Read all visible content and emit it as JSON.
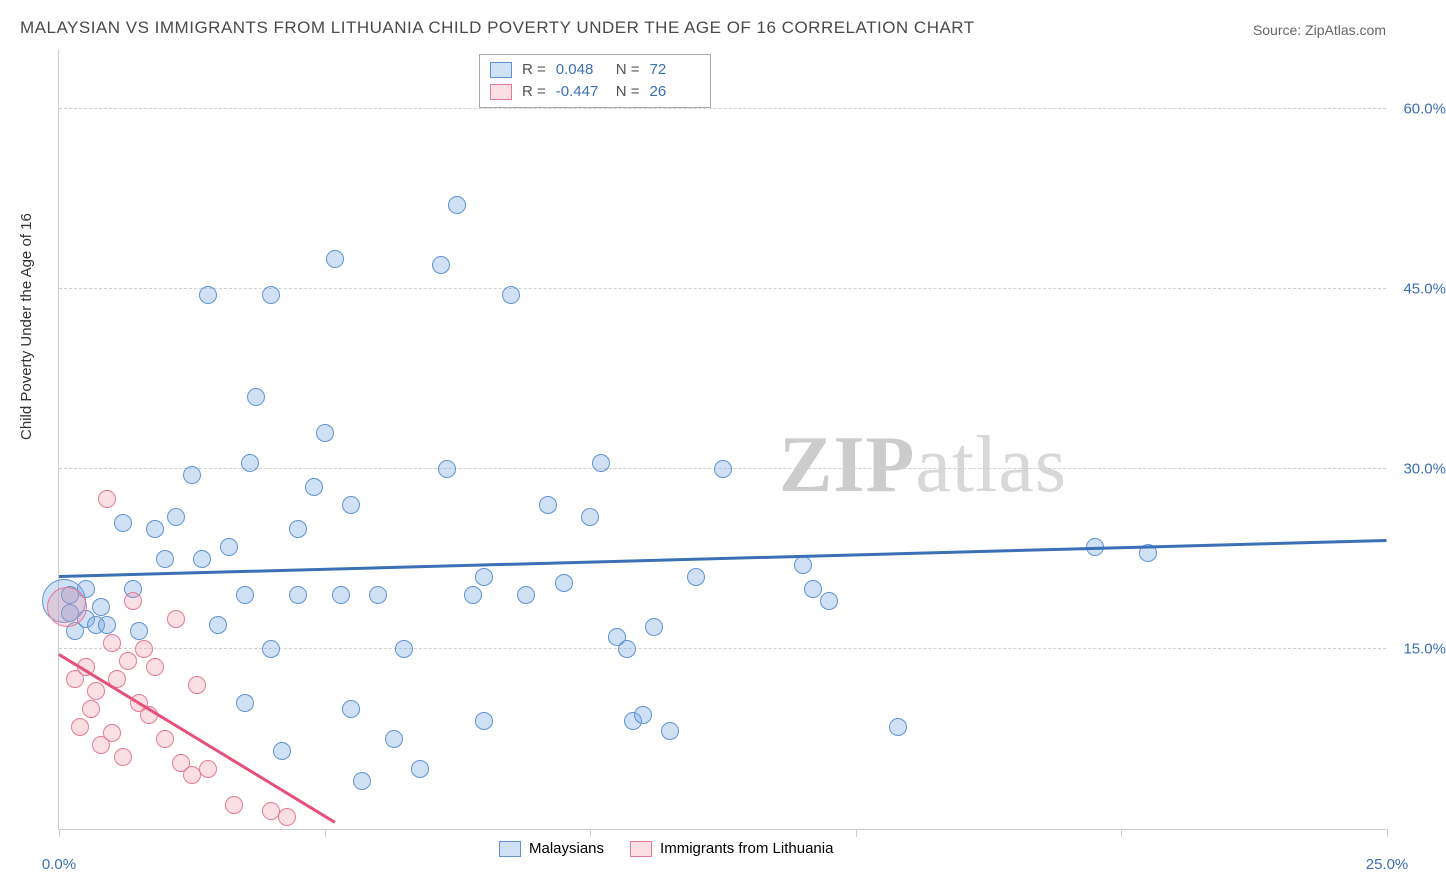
{
  "title": "MALAYSIAN VS IMMIGRANTS FROM LITHUANIA CHILD POVERTY UNDER THE AGE OF 16 CORRELATION CHART",
  "source": "Source: ZipAtlas.com",
  "y_axis_label": "Child Poverty Under the Age of 16",
  "watermark": {
    "prefix": "ZIP",
    "suffix": "atlas"
  },
  "chart": {
    "type": "scatter",
    "xlim": [
      0,
      25
    ],
    "ylim": [
      0,
      65
    ],
    "x_ticks": [
      0,
      5,
      10,
      15,
      20,
      25
    ],
    "x_tick_labels": [
      "0.0%",
      "",
      "",
      "",
      "",
      "25.0%"
    ],
    "y_ticks": [
      15,
      30,
      45,
      60
    ],
    "y_tick_labels": [
      "15.0%",
      "30.0%",
      "45.0%",
      "60.0%"
    ],
    "grid_color": "#d0d0d0",
    "background_color": "#ffffff",
    "axis_color": "#cccccc",
    "tick_label_color": "#3b6fb6",
    "marker_radius": 9,
    "series": [
      {
        "name": "Malaysians",
        "color_fill": "rgba(120,170,225,0.35)",
        "color_stroke": "#5e94d4",
        "trend_color": "#3b6fb6",
        "R": "0.048",
        "N": "72",
        "trend": {
          "x1": 0,
          "y1": 21.0,
          "x2": 25,
          "y2": 24.0
        },
        "points": [
          [
            0.2,
            19.5
          ],
          [
            0.2,
            18.0
          ],
          [
            0.3,
            16.5
          ],
          [
            0.5,
            17.5
          ],
          [
            0.5,
            20.0
          ],
          [
            0.7,
            17.0
          ],
          [
            0.8,
            18.5
          ],
          [
            0.9,
            17.0
          ],
          [
            1.2,
            25.5
          ],
          [
            1.4,
            20.0
          ],
          [
            1.5,
            16.5
          ],
          [
            1.8,
            25.0
          ],
          [
            2.0,
            22.5
          ],
          [
            2.2,
            26.0
          ],
          [
            2.5,
            29.5
          ],
          [
            2.7,
            22.5
          ],
          [
            2.8,
            44.5
          ],
          [
            3.0,
            17.0
          ],
          [
            3.2,
            23.5
          ],
          [
            3.5,
            19.5
          ],
          [
            3.5,
            10.5
          ],
          [
            3.6,
            30.5
          ],
          [
            3.7,
            36.0
          ],
          [
            4.0,
            15.0
          ],
          [
            4.0,
            44.5
          ],
          [
            4.2,
            6.5
          ],
          [
            4.5,
            25.0
          ],
          [
            4.5,
            19.5
          ],
          [
            4.8,
            28.5
          ],
          [
            5.0,
            33.0
          ],
          [
            5.2,
            47.5
          ],
          [
            5.3,
            19.5
          ],
          [
            5.5,
            27.0
          ],
          [
            5.5,
            10.0
          ],
          [
            5.7,
            4.0
          ],
          [
            6.0,
            19.5
          ],
          [
            6.3,
            7.5
          ],
          [
            6.5,
            15.0
          ],
          [
            6.8,
            5.0
          ],
          [
            7.2,
            47.0
          ],
          [
            7.3,
            30.0
          ],
          [
            7.5,
            52.0
          ],
          [
            7.8,
            19.5
          ],
          [
            8.0,
            21.0
          ],
          [
            8.0,
            9.0
          ],
          [
            8.5,
            44.5
          ],
          [
            8.8,
            19.5
          ],
          [
            9.2,
            27.0
          ],
          [
            9.5,
            20.5
          ],
          [
            10.0,
            26.0
          ],
          [
            10.2,
            30.5
          ],
          [
            10.5,
            16.0
          ],
          [
            10.7,
            15.0
          ],
          [
            10.8,
            9.0
          ],
          [
            11.0,
            9.5
          ],
          [
            11.2,
            16.8
          ],
          [
            11.5,
            8.2
          ],
          [
            12.0,
            21.0
          ],
          [
            12.5,
            30.0
          ],
          [
            14.0,
            22.0
          ],
          [
            14.2,
            20.0
          ],
          [
            14.5,
            19.0
          ],
          [
            15.8,
            8.5
          ],
          [
            19.5,
            23.5
          ],
          [
            20.5,
            23.0
          ]
        ],
        "big_points": [
          [
            0.1,
            19.0,
            22
          ]
        ]
      },
      {
        "name": "Immigrants from Lithuania",
        "color_fill": "rgba(240,150,170,0.30)",
        "color_stroke": "#e67a94",
        "trend_color": "#e6507a",
        "R": "-0.447",
        "N": "26",
        "trend": {
          "x1": 0,
          "y1": 14.5,
          "x2": 5.2,
          "y2": 0.5
        },
        "points": [
          [
            0.3,
            12.5
          ],
          [
            0.4,
            8.5
          ],
          [
            0.5,
            13.5
          ],
          [
            0.6,
            10.0
          ],
          [
            0.7,
            11.5
          ],
          [
            0.8,
            7.0
          ],
          [
            0.9,
            27.5
          ],
          [
            1.0,
            15.5
          ],
          [
            1.0,
            8.0
          ],
          [
            1.1,
            12.5
          ],
          [
            1.2,
            6.0
          ],
          [
            1.3,
            14.0
          ],
          [
            1.4,
            19.0
          ],
          [
            1.5,
            10.5
          ],
          [
            1.6,
            15.0
          ],
          [
            1.7,
            9.5
          ],
          [
            1.8,
            13.5
          ],
          [
            2.0,
            7.5
          ],
          [
            2.2,
            17.5
          ],
          [
            2.3,
            5.5
          ],
          [
            2.5,
            4.5
          ],
          [
            2.6,
            12.0
          ],
          [
            2.8,
            5.0
          ],
          [
            3.3,
            2.0
          ],
          [
            4.0,
            1.5
          ],
          [
            4.3,
            1.0
          ]
        ],
        "big_points": [
          [
            0.15,
            18.5,
            20
          ]
        ]
      }
    ]
  },
  "legend_bottom": [
    {
      "swatch_fill": "rgba(120,170,225,0.35)",
      "swatch_stroke": "#5e94d4",
      "label": "Malaysians"
    },
    {
      "swatch_fill": "rgba(240,150,170,0.30)",
      "swatch_stroke": "#e67a94",
      "label": "Immigrants from Lithuania"
    }
  ]
}
